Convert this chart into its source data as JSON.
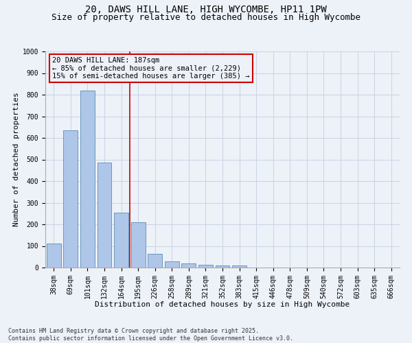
{
  "title_line1": "20, DAWS HILL LANE, HIGH WYCOMBE, HP11 1PW",
  "title_line2": "Size of property relative to detached houses in High Wycombe",
  "xlabel": "Distribution of detached houses by size in High Wycombe",
  "ylabel": "Number of detached properties",
  "categories": [
    "38sqm",
    "69sqm",
    "101sqm",
    "132sqm",
    "164sqm",
    "195sqm",
    "226sqm",
    "258sqm",
    "289sqm",
    "321sqm",
    "352sqm",
    "383sqm",
    "415sqm",
    "446sqm",
    "478sqm",
    "509sqm",
    "540sqm",
    "572sqm",
    "603sqm",
    "635sqm",
    "666sqm"
  ],
  "values": [
    110,
    635,
    820,
    485,
    255,
    210,
    65,
    27,
    18,
    12,
    10,
    9,
    0,
    0,
    0,
    0,
    0,
    0,
    0,
    0,
    0
  ],
  "bar_color": "#aec6e8",
  "bar_edge_color": "#5b8db8",
  "grid_color": "#c8d4e4",
  "background_color": "#edf1f8",
  "annotation_text": "20 DAWS HILL LANE: 187sqm\n← 85% of detached houses are smaller (2,229)\n15% of semi-detached houses are larger (385) →",
  "vline_x_index": 5,
  "vline_color": "#cc0000",
  "annotation_box_color": "#cc0000",
  "ylim": [
    0,
    1000
  ],
  "yticks": [
    0,
    100,
    200,
    300,
    400,
    500,
    600,
    700,
    800,
    900,
    1000
  ],
  "footnote": "Contains HM Land Registry data © Crown copyright and database right 2025.\nContains public sector information licensed under the Open Government Licence v3.0.",
  "title_fontsize": 10,
  "subtitle_fontsize": 9,
  "axis_label_fontsize": 8,
  "tick_fontsize": 7,
  "annotation_fontsize": 7.5,
  "footnote_fontsize": 6
}
